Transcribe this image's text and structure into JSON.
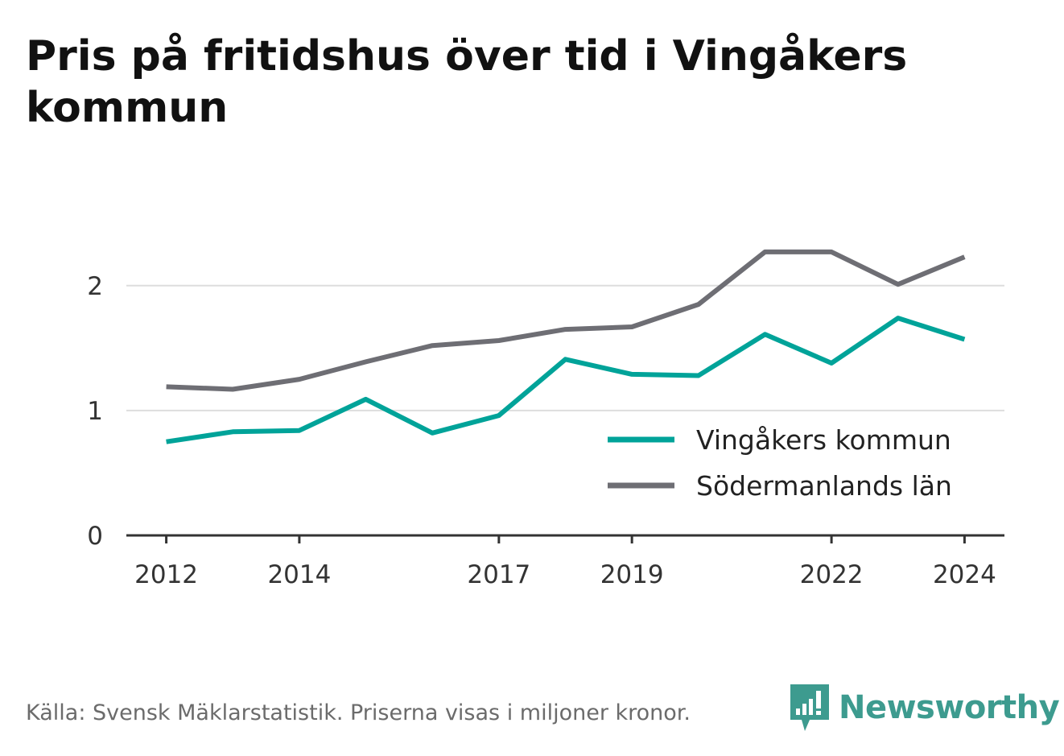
{
  "title": "Pris på fritidshus över tid i Vingåkers kommun",
  "source": "Källa: Svensk Mäklarstatistik. Priserna visas i miljoner kronor.",
  "brand": {
    "name": "Newsworthy",
    "logo_icon": "bar-chart-bubble-icon",
    "color": "#3d9b8f"
  },
  "chart_data": {
    "type": "line",
    "x": [
      2012,
      2013,
      2014,
      2015,
      2016,
      2017,
      2018,
      2019,
      2020,
      2021,
      2022,
      2023,
      2024
    ],
    "xticks": [
      2012,
      2014,
      2017,
      2019,
      2022,
      2024
    ],
    "yticks": [
      0,
      1,
      2
    ],
    "ylim": [
      0,
      2.45
    ],
    "xlim": [
      2011.4,
      2024.6
    ],
    "grid": true,
    "legend_position": "bottom-right",
    "series": [
      {
        "name": "Vingåkers kommun",
        "color": "#00a399",
        "values": [
          0.75,
          0.83,
          0.84,
          1.09,
          0.82,
          0.96,
          1.41,
          1.29,
          1.28,
          1.61,
          1.38,
          1.74,
          1.57
        ]
      },
      {
        "name": "Södermanlands län",
        "color": "#6e6e74",
        "values": [
          1.19,
          1.17,
          1.25,
          1.39,
          1.52,
          1.56,
          1.65,
          1.67,
          1.85,
          2.27,
          2.27,
          2.01,
          2.23
        ]
      }
    ]
  }
}
